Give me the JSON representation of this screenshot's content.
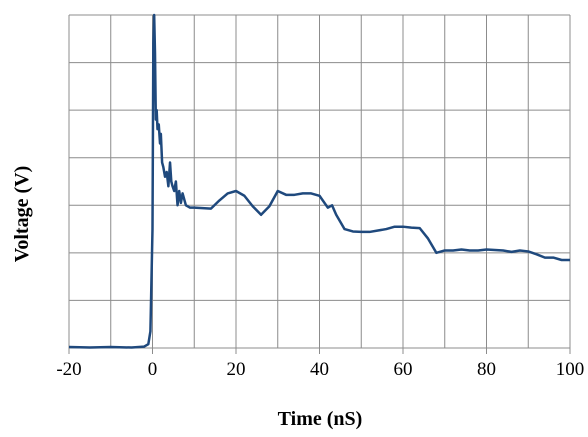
{
  "chart_data": {
    "type": "line",
    "xlabel": "Time  (nS)",
    "ylabel": "Voltage (V)",
    "title": "",
    "xlim": [
      -20,
      100
    ],
    "ylim": [
      0,
      7
    ],
    "grid": true,
    "x_ticks": [
      "-20",
      "0",
      "20",
      "40",
      "60",
      "80",
      "100"
    ],
    "y_ticks": [],
    "line_color": "#1F497D",
    "series": [
      {
        "x": [
          -20,
          -15,
          -10,
          -5,
          -2,
          -1,
          -0.5,
          0,
          0.2,
          0.4,
          0.6,
          0.8,
          1.0,
          1.2,
          1.5,
          1.8,
          2.0,
          2.3,
          2.6,
          3.0,
          3.4,
          3.8,
          4.2,
          4.5,
          4.8,
          5.2,
          5.6,
          6.0,
          6.4,
          6.8,
          7.2,
          8,
          9,
          10,
          12,
          14,
          16,
          18,
          20,
          22,
          24,
          26,
          28,
          30,
          32,
          34,
          36,
          38,
          40,
          42,
          43,
          44,
          46,
          48,
          50,
          52,
          54,
          56,
          58,
          60,
          62,
          64,
          66,
          68,
          70,
          72,
          74,
          76,
          78,
          80,
          82,
          84,
          86,
          88,
          90,
          92,
          94,
          96,
          98,
          100
        ],
        "y": [
          0.02,
          0.01,
          0.02,
          0.01,
          0.03,
          0.08,
          0.35,
          2.5,
          6.4,
          7.0,
          6.2,
          4.8,
          5.0,
          4.6,
          4.7,
          4.3,
          4.5,
          3.9,
          3.8,
          3.6,
          3.7,
          3.4,
          3.9,
          3.5,
          3.4,
          3.3,
          3.5,
          3.0,
          3.3,
          3.05,
          3.25,
          3.0,
          2.95,
          2.95,
          2.94,
          2.93,
          3.1,
          3.25,
          3.3,
          3.2,
          2.98,
          2.8,
          2.98,
          3.3,
          3.22,
          3.22,
          3.25,
          3.25,
          3.2,
          2.95,
          3.0,
          2.8,
          2.5,
          2.45,
          2.44,
          2.44,
          2.47,
          2.5,
          2.55,
          2.55,
          2.53,
          2.52,
          2.3,
          2.0,
          2.05,
          2.05,
          2.07,
          2.05,
          2.05,
          2.07,
          2.06,
          2.05,
          2.02,
          2.05,
          2.03,
          1.97,
          1.9,
          1.9,
          1.85,
          1.85
        ]
      }
    ]
  }
}
